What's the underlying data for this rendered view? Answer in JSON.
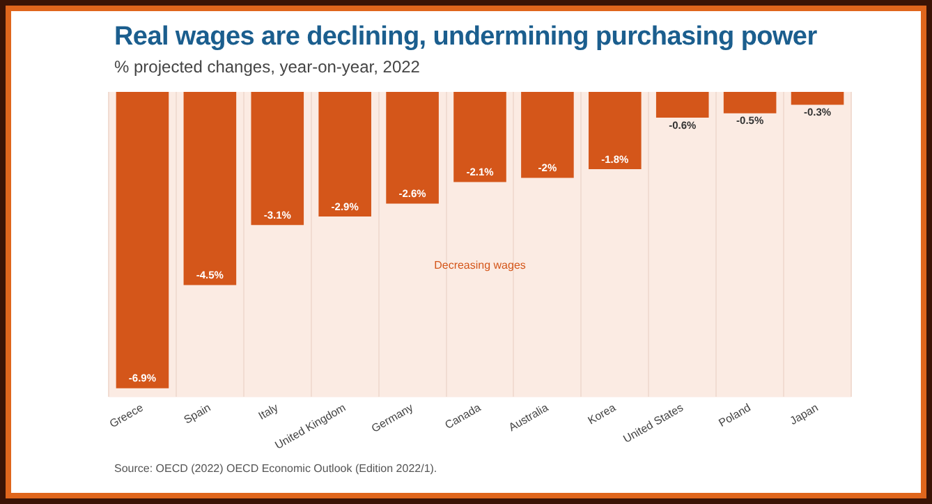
{
  "chart_data": {
    "type": "bar",
    "title": "Real wages are declining, undermining purchasing power",
    "subtitle": "% projected changes, year-on-year, 2022",
    "categories": [
      "Greece",
      "Spain",
      "Italy",
      "United Kingdom",
      "Germany",
      "Canada",
      "Australia",
      "Korea",
      "United States",
      "Poland",
      "Japan"
    ],
    "values": [
      -6.9,
      -4.5,
      -3.1,
      -2.9,
      -2.6,
      -2.1,
      -2,
      -1.8,
      -0.6,
      -0.5,
      -0.3
    ],
    "value_labels": [
      "-6.9%",
      "-4.5%",
      "-3.1%",
      "-2.9%",
      "-2.6%",
      "-2.1%",
      "-2%",
      "-1.8%",
      "-0.6%",
      "-0.5%",
      "-0.3%"
    ],
    "color": "#d4561a",
    "grid": "x",
    "legend": false,
    "annotations": [
      "Decreasing wages",
      "Source: OECD (2022) OECD Economic Outlook (Edition 2022/1)."
    ]
  }
}
